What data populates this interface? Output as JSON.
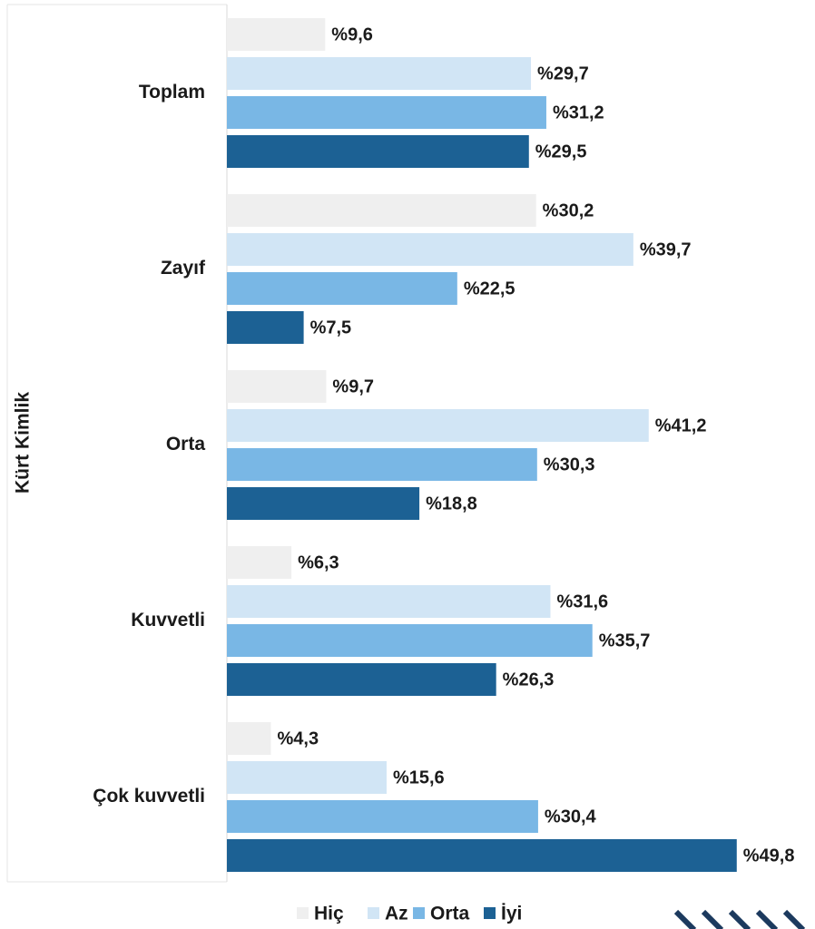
{
  "chart_data": {
    "type": "hbar",
    "y_label": "Kürt Kimlik",
    "categories": [
      "Toplam",
      "Zayıf",
      "Orta",
      "Kuvvetli",
      "Çok kuvvetli"
    ],
    "series": [
      {
        "name": "Hiç",
        "color": "#efefef",
        "values": [
          9.6,
          30.2,
          9.7,
          6.3,
          4.3
        ],
        "value_labels": [
          "%9,6",
          "%30,2",
          "%9,7",
          "%6,3",
          "%4,3"
        ]
      },
      {
        "name": "Az",
        "color": "#d1e5f5",
        "values": [
          29.7,
          39.7,
          41.2,
          31.6,
          15.6
        ],
        "value_labels": [
          "%29,7",
          "%39,7",
          "%41,2",
          "%31,6",
          "%15,6"
        ]
      },
      {
        "name": "Orta",
        "color": "#79b7e5",
        "values": [
          31.2,
          22.5,
          30.3,
          35.7,
          30.4
        ],
        "value_labels": [
          "%31,2",
          "%22,5",
          "%30,3",
          "%35,7",
          "%30,4"
        ]
      },
      {
        "name": "İyi",
        "color": "#1c6194",
        "values": [
          29.5,
          7.5,
          18.8,
          26.3,
          49.8
        ],
        "value_labels": [
          "%29,5",
          "%7,5",
          "%18,8",
          "%26,3",
          "%49,8"
        ]
      }
    ],
    "xlim": [
      0,
      57
    ]
  }
}
